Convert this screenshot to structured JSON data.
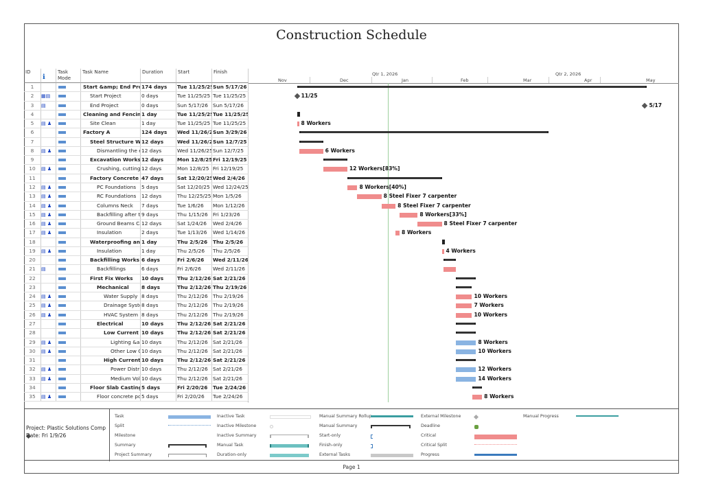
{
  "title": "Construction Schedule",
  "columns": {
    "id": "ID",
    "info": "ℹ",
    "mode": "Task Mode",
    "name": "Task Name",
    "duration": "Duration",
    "start": "Start",
    "finish": "Finish"
  },
  "timescale": {
    "quarters": [
      "Qtr 1, 2026",
      "Qtr 2, 2026"
    ],
    "months": [
      "Nov",
      "Dec",
      "Jan",
      "Feb",
      "Mar",
      "Apr",
      "May"
    ]
  },
  "tasks": [
    {
      "id": "1",
      "ind": "",
      "name": "Start &amp; End Project",
      "duration": "174 days",
      "start": "Tue 11/25/25",
      "finish": "Sun 5/17/26",
      "level": 0,
      "bold": true,
      "type": "summary",
      "label": ""
    },
    {
      "id": "2",
      "ind": "▦▤",
      "name": "Start Project",
      "duration": "0 days",
      "start": "Tue 11/25/25",
      "finish": "Tue 11/25/25",
      "level": 1,
      "bold": false,
      "type": "milestone",
      "label": "11/25"
    },
    {
      "id": "3",
      "ind": "▤",
      "name": "End Project",
      "duration": "0 days",
      "start": "Sun 5/17/26",
      "finish": "Sun 5/17/26",
      "level": 1,
      "bold": false,
      "type": "milestone",
      "label": "5/17"
    },
    {
      "id": "4",
      "ind": "",
      "name": "Cleaning and Fencing",
      "duration": "1 day",
      "start": "Tue 11/25/25",
      "finish": "Tue 11/25/25",
      "level": 0,
      "bold": true,
      "type": "summary",
      "label": ""
    },
    {
      "id": "5",
      "ind": "▤ ♟",
      "name": "Site Clean",
      "duration": "1 day",
      "start": "Tue 11/25/25",
      "finish": "Tue 11/25/25",
      "level": 1,
      "bold": false,
      "type": "critical",
      "label": "8 Workers"
    },
    {
      "id": "6",
      "ind": "",
      "name": "Factory A",
      "duration": "124 days",
      "start": "Wed 11/26/25",
      "finish": "Sun 3/29/26",
      "level": 0,
      "bold": true,
      "type": "summary",
      "label": ""
    },
    {
      "id": "7",
      "ind": "",
      "name": "Steel Structure Works",
      "duration": "12 days",
      "start": "Wed 11/26/25",
      "finish": "Sun 12/7/25",
      "level": 1,
      "bold": true,
      "type": "summary",
      "label": ""
    },
    {
      "id": "8",
      "ind": "▤ ♟",
      "name": "Dismantling the existing",
      "duration": "12 days",
      "start": "Wed 11/26/25",
      "finish": "Sun 12/7/25",
      "level": 2,
      "bold": false,
      "type": "critical",
      "label": "6 Workers"
    },
    {
      "id": "9",
      "ind": "",
      "name": "Excavation Works",
      "duration": "12 days",
      "start": "Mon 12/8/25",
      "finish": "Fri 12/19/25",
      "level": 1,
      "bold": true,
      "type": "summary",
      "label": ""
    },
    {
      "id": "10",
      "ind": "▤ ♟",
      "name": "Crushing, cutting",
      "duration": "12 days",
      "start": "Mon 12/8/25",
      "finish": "Fri 12/19/25",
      "level": 2,
      "bold": false,
      "type": "critical",
      "label": "12 Workers[83%]"
    },
    {
      "id": "11",
      "ind": "",
      "name": "Factory Concrete Works",
      "duration": "47 days",
      "start": "Sat 12/20/25",
      "finish": "Wed 2/4/26",
      "level": 1,
      "bold": true,
      "type": "summary",
      "label": ""
    },
    {
      "id": "12",
      "ind": "▤ ♟",
      "name": "PC Foundations",
      "duration": "5 days",
      "start": "Sat 12/20/25",
      "finish": "Wed 12/24/25",
      "level": 2,
      "bold": false,
      "type": "critical",
      "label": "8 Workers[40%]"
    },
    {
      "id": "13",
      "ind": "▤ ♟",
      "name": "RC Foundations",
      "duration": "12 days",
      "start": "Thu 12/25/25",
      "finish": "Mon 1/5/26",
      "level": 2,
      "bold": false,
      "type": "critical",
      "label": "8 Steel Fixer 7 carpenter"
    },
    {
      "id": "14",
      "ind": "▤ ♟",
      "name": "Columns Neck",
      "duration": "7 days",
      "start": "Tue 1/6/26",
      "finish": "Mon 1/12/26",
      "level": 2,
      "bold": false,
      "type": "critical",
      "label": "8 Steel Fixer 7 carpenter"
    },
    {
      "id": "15",
      "ind": "▤ ♟",
      "name": "Backfilling after the",
      "duration": "9 days",
      "start": "Thu 1/15/26",
      "finish": "Fri 1/23/26",
      "level": 2,
      "bold": false,
      "type": "critical",
      "label": "8 Workers[33%]"
    },
    {
      "id": "16",
      "ind": "▤ ♟",
      "name": "Ground Beams Casting",
      "duration": "12 days",
      "start": "Sat 1/24/26",
      "finish": "Wed 2/4/26",
      "level": 2,
      "bold": false,
      "type": "critical",
      "label": "8 Steel Fixer 7 carpenter"
    },
    {
      "id": "17",
      "ind": "▤ ♟",
      "name": "Insulation",
      "duration": "2 days",
      "start": "Tue 1/13/26",
      "finish": "Wed 1/14/26",
      "level": 2,
      "bold": false,
      "type": "critical",
      "label": "8 Workers"
    },
    {
      "id": "18",
      "ind": "",
      "name": "Waterproofing and Insulation",
      "duration": "1 day",
      "start": "Thu 2/5/26",
      "finish": "Thu 2/5/26",
      "level": 1,
      "bold": true,
      "type": "summary",
      "label": ""
    },
    {
      "id": "19",
      "ind": "▤ ♟",
      "name": "Insulation",
      "duration": "1 day",
      "start": "Thu 2/5/26",
      "finish": "Thu 2/5/26",
      "level": 2,
      "bold": false,
      "type": "critical",
      "label": "4 Workers"
    },
    {
      "id": "20",
      "ind": "",
      "name": "Backfilling Works",
      "duration": "6 days",
      "start": "Fri 2/6/26",
      "finish": "Wed 2/11/26",
      "level": 1,
      "bold": true,
      "type": "summary",
      "label": ""
    },
    {
      "id": "21",
      "ind": "▤",
      "name": "Backfillings",
      "duration": "6 days",
      "start": "Fri 2/6/26",
      "finish": "Wed 2/11/26",
      "level": 2,
      "bold": false,
      "type": "critical",
      "label": ""
    },
    {
      "id": "22",
      "ind": "",
      "name": "First Fix Works",
      "duration": "10 days",
      "start": "Thu 2/12/26",
      "finish": "Sat 2/21/26",
      "level": 1,
      "bold": true,
      "type": "summary",
      "label": ""
    },
    {
      "id": "23",
      "ind": "",
      "name": "Mechanical",
      "duration": "8 days",
      "start": "Thu 2/12/26",
      "finish": "Thu 2/19/26",
      "level": 2,
      "bold": true,
      "type": "summary",
      "label": ""
    },
    {
      "id": "24",
      "ind": "▤ ♟",
      "name": "Water Supply",
      "duration": "8 days",
      "start": "Thu 2/12/26",
      "finish": "Thu 2/19/26",
      "level": 3,
      "bold": false,
      "type": "critical",
      "label": "10 Workers"
    },
    {
      "id": "25",
      "ind": "▤ ♟",
      "name": "Drainage System",
      "duration": "8 days",
      "start": "Thu 2/12/26",
      "finish": "Thu 2/19/26",
      "level": 3,
      "bold": false,
      "type": "critical",
      "label": "7 Workers"
    },
    {
      "id": "26",
      "ind": "▤ ♟",
      "name": "HVAC System",
      "duration": "8 days",
      "start": "Thu 2/12/26",
      "finish": "Thu 2/19/26",
      "level": 3,
      "bold": false,
      "type": "critical",
      "label": "10 Workers"
    },
    {
      "id": "27",
      "ind": "",
      "name": "Electrical",
      "duration": "10 days",
      "start": "Thu 2/12/26",
      "finish": "Sat 2/21/26",
      "level": 2,
      "bold": true,
      "type": "summary",
      "label": ""
    },
    {
      "id": "28",
      "ind": "",
      "name": "Low Current Systems",
      "duration": "10 days",
      "start": "Thu 2/12/26",
      "finish": "Sat 2/21/26",
      "level": 3,
      "bold": true,
      "type": "summary",
      "label": ""
    },
    {
      "id": "29",
      "ind": "▤ ♟",
      "name": "Lighting &amp;",
      "duration": "10 days",
      "start": "Thu 2/12/26",
      "finish": "Sat 2/21/26",
      "level": 4,
      "bold": false,
      "type": "task",
      "label": "8 Workers"
    },
    {
      "id": "30",
      "ind": "▤ ♟",
      "name": "Other Low Current",
      "duration": "10 days",
      "start": "Thu 2/12/26",
      "finish": "Sat 2/21/26",
      "level": 4,
      "bold": false,
      "type": "task",
      "label": "10 Workers"
    },
    {
      "id": "31",
      "ind": "",
      "name": "High Current Systems",
      "duration": "10 days",
      "start": "Thu 2/12/26",
      "finish": "Sat 2/21/26",
      "level": 3,
      "bold": true,
      "type": "summary",
      "label": ""
    },
    {
      "id": "32",
      "ind": "▤ ♟",
      "name": "Power Distribution",
      "duration": "10 days",
      "start": "Thu 2/12/26",
      "finish": "Sat 2/21/26",
      "level": 4,
      "bold": false,
      "type": "task",
      "label": "12 Workers"
    },
    {
      "id": "33",
      "ind": "▤ ♟",
      "name": "Medium Voltage",
      "duration": "10 days",
      "start": "Thu 2/12/26",
      "finish": "Sat 2/21/26",
      "level": 4,
      "bold": false,
      "type": "task",
      "label": "14 Workers"
    },
    {
      "id": "34",
      "ind": "",
      "name": "Floor Slab Casting Works",
      "duration": "5 days",
      "start": "Fri 2/20/26",
      "finish": "Tue 2/24/26",
      "level": 1,
      "bold": true,
      "type": "summary",
      "label": ""
    },
    {
      "id": "35",
      "ind": "▤ ♟",
      "name": "Floor concrete pouring",
      "duration": "5 days",
      "start": "Fri 2/20/26",
      "finish": "Tue 2/24/26",
      "level": 2,
      "bold": false,
      "type": "critical",
      "label": "8 Workers"
    }
  ],
  "legend": {
    "project": "Project: Plastic Solutions Comp",
    "date": "Date: Fri 1/9/26",
    "items": [
      [
        "Task",
        "Split",
        "Milestone",
        "Summary",
        "Project Summary"
      ],
      [
        "Inactive Task",
        "Inactive Milestone",
        "Inactive Summary",
        "Manual Task",
        "Duration-only"
      ],
      [
        "Manual Summary Rollup",
        "Manual Summary",
        "Start-only",
        "Finish-only",
        "External Tasks"
      ],
      [
        "External Milestone",
        "Deadline",
        "Critical",
        "Critical Split",
        "Progress"
      ],
      [
        "Manual Progress"
      ]
    ]
  },
  "footer": "Page 1",
  "colors": {
    "critical": "#f08c8c",
    "task": "#8ab4e2",
    "summary": "#333333",
    "today": "#8cc08c"
  }
}
